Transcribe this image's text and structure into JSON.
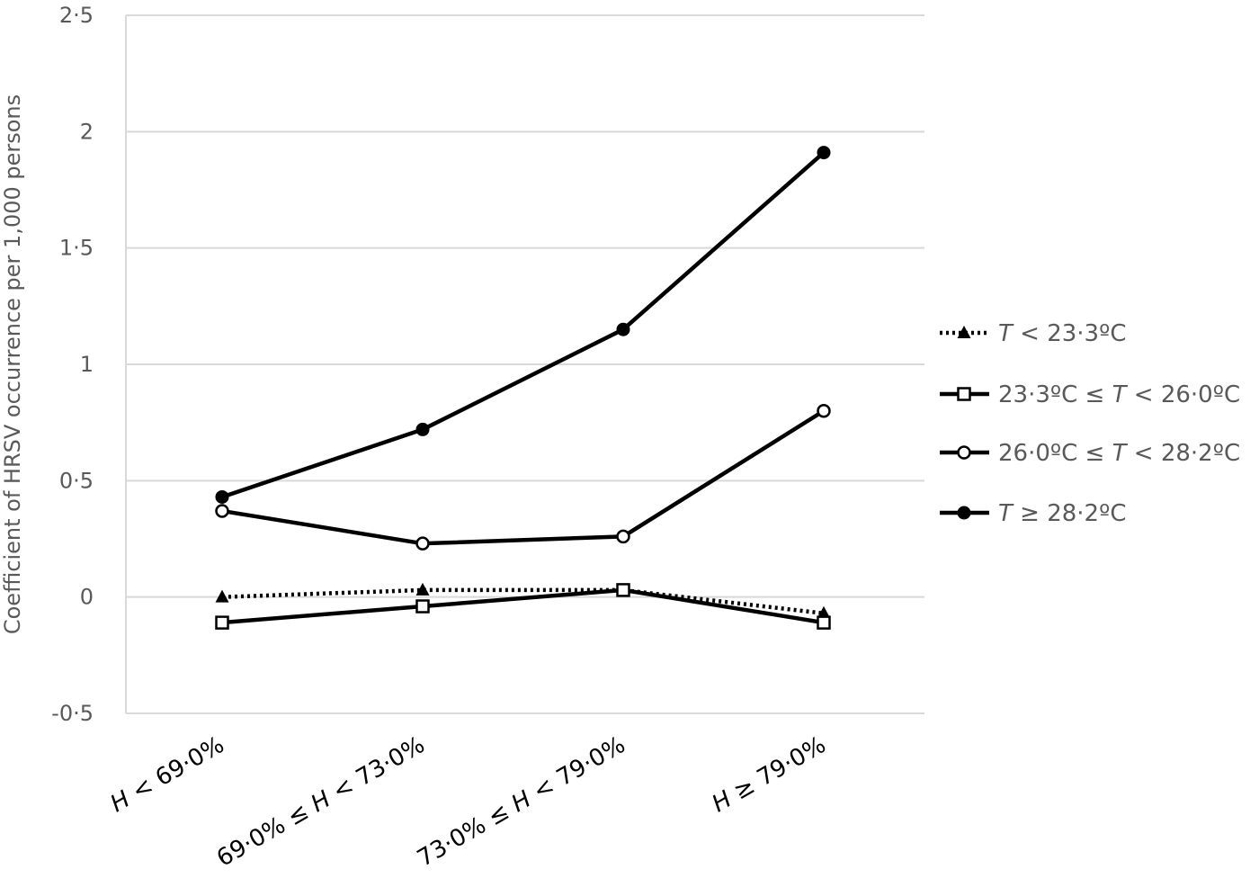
{
  "chart_data": {
    "type": "line",
    "title": "",
    "xlabel": "",
    "ylabel": "Coefficient of HRSV occurrence per 1,000 persons",
    "ylim": [
      -0.5,
      2.5
    ],
    "yticks": [
      {
        "value": 2.5,
        "label": "2·5"
      },
      {
        "value": 2,
        "label": "2"
      },
      {
        "value": 1.5,
        "label": "1·5"
      },
      {
        "value": 1,
        "label": "1"
      },
      {
        "value": 0.5,
        "label": "0·5"
      },
      {
        "value": 0,
        "label": "0"
      },
      {
        "value": -0.5,
        "label": "-0·5"
      }
    ],
    "grid": true,
    "legend_position": "right",
    "categories": [
      {
        "pre": "",
        "var": "H",
        "post": " < 69·0%"
      },
      {
        "pre": "69·0% ≤ ",
        "var": "H",
        "post": " < 73·0%"
      },
      {
        "pre": "73·0% ≤ ",
        "var": "H",
        "post": " < 79·0%"
      },
      {
        "pre": "",
        "var": "H",
        "post": " ≥ 79·0%"
      }
    ],
    "series": [
      {
        "name": {
          "pre": "",
          "var": "T",
          "post": " < 23·3ºC"
        },
        "values": [
          0.0,
          0.03,
          0.03,
          -0.07
        ],
        "marker": "triangle",
        "dash": "dotted",
        "color": "#000000"
      },
      {
        "name": {
          "pre": "23·3ºC ≤ ",
          "var": "T",
          "post": " < 26·0ºC"
        },
        "values": [
          -0.11,
          -0.04,
          0.03,
          -0.11
        ],
        "marker": "open-square",
        "dash": "solid",
        "color": "#000000"
      },
      {
        "name": {
          "pre": "26·0ºC ≤ ",
          "var": "T",
          "post": " < 28·2ºC"
        },
        "values": [
          0.37,
          0.23,
          0.26,
          0.8
        ],
        "marker": "open-circle",
        "dash": "solid",
        "color": "#000000"
      },
      {
        "name": {
          "pre": "",
          "var": "T",
          "post": " ≥ 28·2ºC"
        },
        "values": [
          0.43,
          0.72,
          1.15,
          1.91
        ],
        "marker": "filled-circle",
        "dash": "solid",
        "color": "#000000"
      }
    ]
  },
  "colors": {
    "grid": "#d9d9d9",
    "tick_text": "#595959",
    "line": "#000000"
  }
}
